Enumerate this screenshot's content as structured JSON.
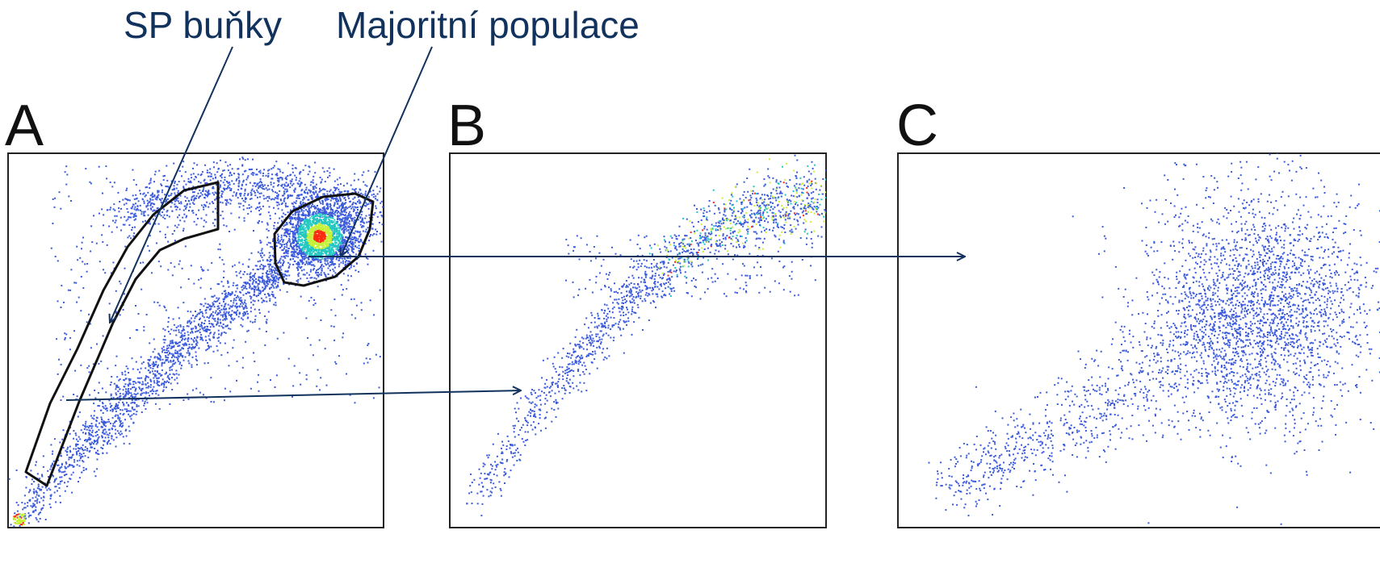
{
  "annotations": {
    "sp_label": "SP buňky",
    "majority_label": "Majoritní populace"
  },
  "colors": {
    "annotation": "#12325e",
    "dot_low": "#3b5bdc",
    "dot_mid": "#22c7c0",
    "dot_high": "#c6f03a",
    "dot_peak": "#ff2a10"
  },
  "chart_data": [
    {
      "type": "scatter",
      "panel": "A",
      "title": "A",
      "xlabel": "",
      "ylabel": "",
      "grid": false,
      "gates": [
        "SP buňky",
        "Majoritní populace"
      ],
      "color_scale": "density (blue to red)"
    },
    {
      "type": "scatter",
      "panel": "B",
      "title": "B",
      "xlabel": "",
      "ylabel": "",
      "grid": false,
      "source_gate": "SP buňky",
      "color_scale": "density (blue to red)"
    },
    {
      "type": "scatter",
      "panel": "C",
      "title": "C",
      "xlabel": "",
      "ylabel": "",
      "grid": false,
      "source_gate": "Majoritní populace",
      "color_scale": "density (blue)"
    }
  ]
}
